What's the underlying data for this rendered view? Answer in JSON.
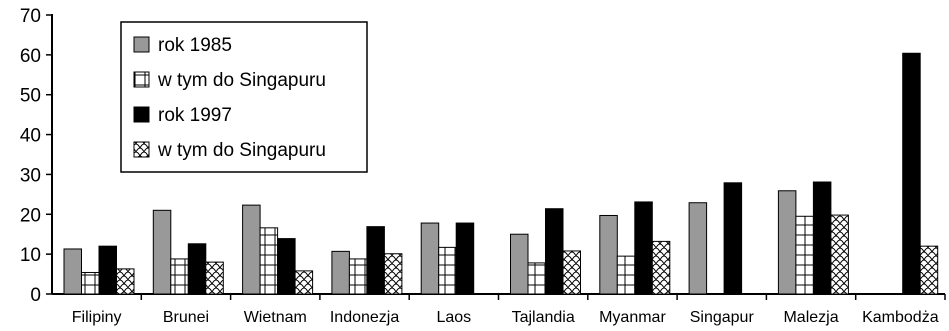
{
  "chart_data": {
    "type": "bar",
    "categories": [
      "Filipiny",
      "Brunei",
      "Wietnam",
      "Indonezja",
      "Laos",
      "Tajlandia",
      "Myanmar",
      "Singapur",
      "Malezja",
      "Kambodża"
    ],
    "series": [
      {
        "name": "rok 1985",
        "pattern": "solid-gray",
        "values": [
          11.3,
          21.0,
          22.3,
          10.7,
          17.8,
          15.0,
          19.7,
          22.9,
          25.9,
          null
        ]
      },
      {
        "name": "w tym do Singapuru",
        "pattern": "grid",
        "values": [
          5.4,
          8.8,
          16.6,
          8.8,
          11.7,
          7.8,
          9.5,
          null,
          19.5,
          null
        ]
      },
      {
        "name": "rok 1997",
        "pattern": "solid-black",
        "values": [
          12.0,
          12.6,
          13.9,
          16.9,
          17.8,
          21.4,
          23.1,
          27.9,
          28.1,
          60.4
        ]
      },
      {
        "name": "w tym do Singapuru",
        "pattern": "scale",
        "values": [
          6.3,
          8.0,
          5.8,
          10.1,
          null,
          10.8,
          13.2,
          null,
          19.8,
          12.0
        ]
      }
    ],
    "yticks": [
      "0",
      "10",
      "20",
      "30",
      "40",
      "50",
      "60",
      "70"
    ],
    "ylim": [
      0,
      70
    ],
    "grid": false,
    "legend_position": "top-left",
    "colors": {
      "gray": "#999999",
      "black": "#000000",
      "white": "#ffffff",
      "stroke": "#000000"
    }
  }
}
